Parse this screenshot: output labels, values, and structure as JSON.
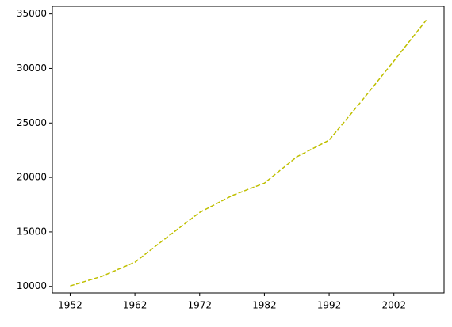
{
  "chart_data": {
    "type": "line",
    "x": [
      1952,
      1957,
      1962,
      1967,
      1972,
      1977,
      1982,
      1987,
      1992,
      1997,
      2002,
      2007
    ],
    "series": [
      {
        "color": "#bfbf00",
        "values": [
          10039.6,
          10949.6,
          12217.2,
          14526.1,
          16788.6,
          18334.2,
          19477.0,
          21888.9,
          23424.8,
          26998.0,
          30687.8,
          34435.4
        ]
      }
    ],
    "xlim": [
      1949.25,
      2009.75
    ],
    "xticks": [
      1952,
      1962,
      1972,
      1982,
      1992,
      2002
    ],
    "ylim": [
      9400,
      35700
    ],
    "yticks": [
      10000,
      15000,
      20000,
      25000,
      30000,
      35000
    ],
    "line_style": "dashed",
    "grid": false
  }
}
